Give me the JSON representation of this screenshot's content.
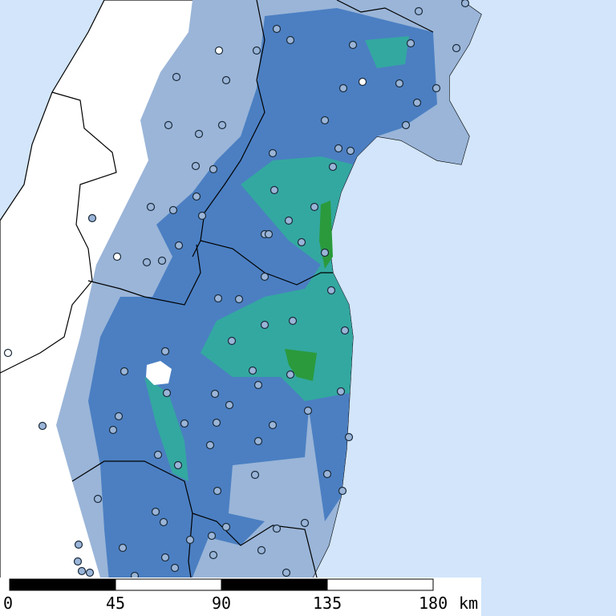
{
  "scale_bar": {
    "ticks": [
      0,
      45,
      90,
      135,
      180
    ],
    "unit": "km"
  }
}
